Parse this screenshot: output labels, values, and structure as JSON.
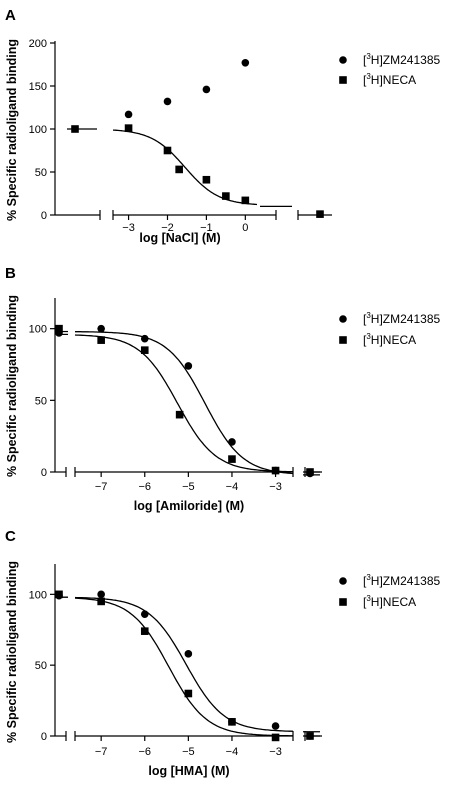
{
  "chart_data": [
    {
      "panel": "A",
      "type": "scatter",
      "xlabel": "log [NaCl] (M)",
      "ylabel": "% Specific radioligand binding",
      "ylim": [
        0,
        200
      ],
      "xlim": [
        -3.4,
        0.3
      ],
      "xticks": [
        -3,
        -2,
        -1,
        0
      ],
      "yticks": [
        0,
        50,
        100,
        150,
        200
      ],
      "legend_position": "right",
      "series": [
        {
          "name": "[3H]ZM241385",
          "marker": "circle",
          "fit": false,
          "x": [
            -3,
            -2,
            -1,
            0
          ],
          "y": [
            117,
            132,
            146,
            177
          ]
        },
        {
          "name": "[3H]NECA",
          "marker": "square",
          "fit": true,
          "x": [
            -3,
            -2,
            -1.7,
            -1,
            -0.5,
            0
          ],
          "y": [
            101,
            75,
            53,
            41,
            22,
            17
          ],
          "curve": {
            "top": 100,
            "bottom": 11,
            "log_ic50": -1.55,
            "hill": -1
          },
          "baseline_point": {
            "y": 100,
            "line_y": 100
          },
          "high_point": {
            "y": 1,
            "line_y": 10
          }
        }
      ]
    },
    {
      "panel": "B",
      "type": "scatter",
      "xlabel": "log [Amiloride] (M)",
      "ylabel": "% Specific radioligand binding",
      "ylim": [
        0,
        120
      ],
      "xlim": [
        -7.6,
        -2.6
      ],
      "xticks": [
        -7,
        -6,
        -5,
        -4,
        -3
      ],
      "yticks": [
        0,
        50,
        100
      ],
      "legend_position": "right",
      "series": [
        {
          "name": "[3H]ZM241385",
          "marker": "circle",
          "fit": true,
          "x": [
            -7,
            -6,
            -5,
            -4,
            -3
          ],
          "y": [
            100,
            93,
            74,
            21,
            1
          ],
          "curve": {
            "top": 98,
            "bottom": -2,
            "log_ic50": -4.62,
            "hill": -1
          },
          "baseline_point": {
            "y": 97
          },
          "high_point": {
            "y": -1
          }
        },
        {
          "name": "[3H]NECA",
          "marker": "square",
          "fit": true,
          "x": [
            -7,
            -6,
            -5.2,
            -4,
            -3
          ],
          "y": [
            92,
            85,
            40,
            9,
            1
          ],
          "curve": {
            "top": 96,
            "bottom": 0,
            "log_ic50": -5.25,
            "hill": -1
          },
          "baseline_point": {
            "y": 100
          },
          "high_point": {
            "y": 0
          }
        }
      ]
    },
    {
      "panel": "C",
      "type": "scatter",
      "xlabel": "log [HMA] (M)",
      "ylabel": "% Specific radioligand binding",
      "ylim": [
        0,
        120
      ],
      "xlim": [
        -7.6,
        -2.6
      ],
      "xticks": [
        -7,
        -6,
        -5,
        -4,
        -3
      ],
      "yticks": [
        0,
        50,
        100
      ],
      "legend_position": "right",
      "series": [
        {
          "name": "[3H]ZM241385",
          "marker": "circle",
          "fit": true,
          "x": [
            -7,
            -6,
            -5,
            -4,
            -3
          ],
          "y": [
            100,
            86,
            58,
            10,
            7
          ],
          "curve": {
            "top": 98,
            "bottom": 3,
            "log_ic50": -5.05,
            "hill": -1
          },
          "baseline_point": {
            "y": 99
          },
          "high_point": {
            "y": 0
          }
        },
        {
          "name": "[3H]NECA",
          "marker": "square",
          "fit": true,
          "x": [
            -7,
            -6,
            -5,
            -4,
            -3
          ],
          "y": [
            95,
            74,
            30,
            10,
            -1
          ],
          "curve": {
            "top": 98,
            "bottom": 0,
            "log_ic50": -5.45,
            "hill": -1
          },
          "baseline_point": {
            "y": 100
          },
          "high_point": {
            "y": 0
          }
        }
      ]
    }
  ]
}
